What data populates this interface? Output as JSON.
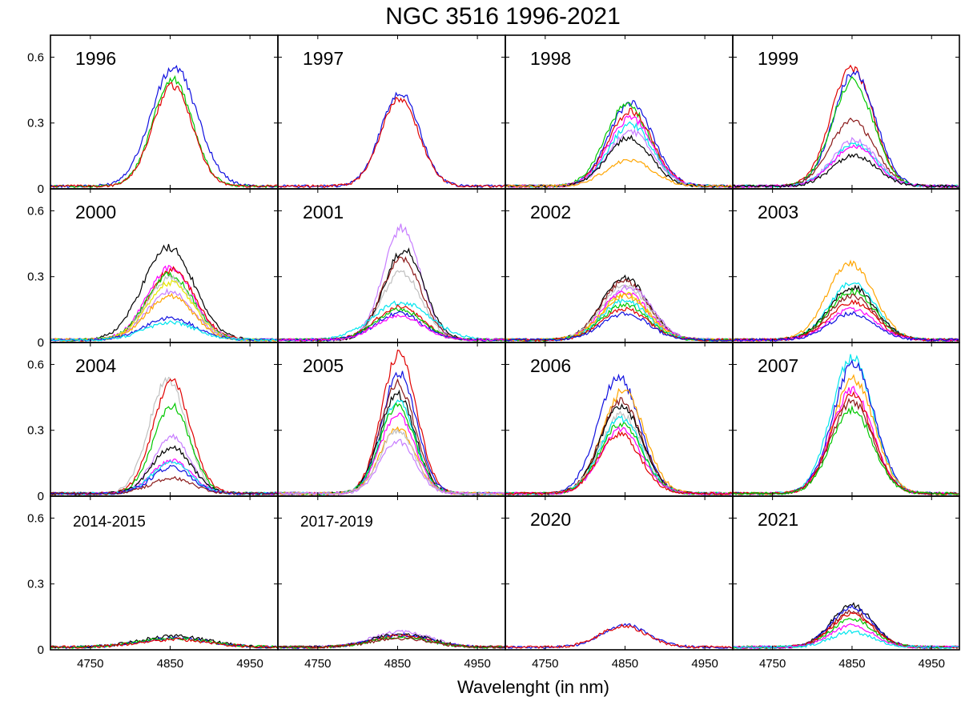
{
  "chart_data": {
    "type": "line",
    "title": "NGC 3516 1996-2021",
    "xlabel": "Wavelenght (in nm)",
    "ylabel": "",
    "xlim": [
      4700,
      4985
    ],
    "ylim": [
      0,
      0.7
    ],
    "xticks": [
      4750,
      4850,
      4950
    ],
    "yticks": [
      0,
      0.3,
      0.6
    ],
    "ytick_labels": [
      "0",
      "0.3",
      "0.6"
    ],
    "grid": false,
    "colors": {
      "blue": "#1010e0",
      "red": "#e00000",
      "green": "#00c800",
      "black": "#000000",
      "magenta": "#ff00ff",
      "cyan": "#00e5ee",
      "orange": "#ffa500",
      "violet": "#c77dff",
      "brown": "#8b1a1a",
      "gray": "#c0c0c0",
      "yellow": "#e6e600",
      "purple": "#9020d0"
    },
    "panels": [
      {
        "label": "1996",
        "series": [
          {
            "color": "blue",
            "peak": 0.54,
            "center": 4855,
            "width": 40
          },
          {
            "color": "green",
            "peak": 0.49,
            "center": 4853,
            "width": 34
          },
          {
            "color": "red",
            "peak": 0.46,
            "center": 4853,
            "width": 34
          }
        ]
      },
      {
        "label": "1997",
        "series": [
          {
            "color": "blue",
            "peak": 0.43,
            "center": 4853,
            "width": 33
          },
          {
            "color": "red",
            "peak": 0.4,
            "center": 4853,
            "width": 33
          }
        ]
      },
      {
        "label": "1998",
        "series": [
          {
            "color": "blue",
            "peak": 0.38,
            "center": 4857,
            "width": 38
          },
          {
            "color": "green",
            "peak": 0.37,
            "center": 4853,
            "width": 38
          },
          {
            "color": "red",
            "peak": 0.34,
            "center": 4857,
            "width": 38
          },
          {
            "color": "magenta",
            "peak": 0.31,
            "center": 4857,
            "width": 38
          },
          {
            "color": "cyan",
            "peak": 0.28,
            "center": 4857,
            "width": 38
          },
          {
            "color": "violet",
            "peak": 0.25,
            "center": 4857,
            "width": 38
          },
          {
            "color": "black",
            "peak": 0.22,
            "center": 4855,
            "width": 38
          },
          {
            "color": "orange",
            "peak": 0.12,
            "center": 4855,
            "width": 40
          }
        ]
      },
      {
        "label": "1999",
        "series": [
          {
            "color": "red",
            "peak": 0.54,
            "center": 4850,
            "width": 36
          },
          {
            "color": "blue",
            "peak": 0.52,
            "center": 4853,
            "width": 36
          },
          {
            "color": "green",
            "peak": 0.48,
            "center": 4851,
            "width": 36
          },
          {
            "color": "brown",
            "peak": 0.3,
            "center": 4850,
            "width": 38
          },
          {
            "color": "violet",
            "peak": 0.21,
            "center": 4853,
            "width": 38
          },
          {
            "color": "cyan",
            "peak": 0.19,
            "center": 4853,
            "width": 38
          },
          {
            "color": "magenta",
            "peak": 0.18,
            "center": 4853,
            "width": 38
          },
          {
            "color": "black",
            "peak": 0.14,
            "center": 4853,
            "width": 38
          }
        ]
      },
      {
        "label": "2000",
        "series": [
          {
            "color": "black",
            "peak": 0.42,
            "center": 4848,
            "width": 44
          },
          {
            "color": "magenta",
            "peak": 0.33,
            "center": 4850,
            "width": 40
          },
          {
            "color": "red",
            "peak": 0.32,
            "center": 4852,
            "width": 40
          },
          {
            "color": "green",
            "peak": 0.3,
            "center": 4850,
            "width": 40
          },
          {
            "color": "gray",
            "peak": 0.28,
            "center": 4850,
            "width": 40
          },
          {
            "color": "yellow",
            "peak": 0.26,
            "center": 4850,
            "width": 40
          },
          {
            "color": "violet",
            "peak": 0.22,
            "center": 4850,
            "width": 40
          },
          {
            "color": "orange",
            "peak": 0.2,
            "center": 4850,
            "width": 40
          },
          {
            "color": "blue",
            "peak": 0.1,
            "center": 4850,
            "width": 44
          },
          {
            "color": "cyan",
            "peak": 0.08,
            "center": 4850,
            "width": 44
          }
        ]
      },
      {
        "label": "2001",
        "series": [
          {
            "color": "violet",
            "peak": 0.51,
            "center": 4855,
            "width": 32
          },
          {
            "color": "black",
            "peak": 0.41,
            "center": 4858,
            "width": 34
          },
          {
            "color": "brown",
            "peak": 0.37,
            "center": 4855,
            "width": 34
          },
          {
            "color": "gray",
            "peak": 0.31,
            "center": 4855,
            "width": 34
          },
          {
            "color": "cyan",
            "peak": 0.17,
            "center": 4855,
            "width": 50
          },
          {
            "color": "red",
            "peak": 0.15,
            "center": 4852,
            "width": 40
          },
          {
            "color": "green",
            "peak": 0.14,
            "center": 4852,
            "width": 40
          },
          {
            "color": "blue",
            "peak": 0.12,
            "center": 4852,
            "width": 40
          },
          {
            "color": "magenta",
            "peak": 0.11,
            "center": 4852,
            "width": 40
          }
        ]
      },
      {
        "label": "2002",
        "series": [
          {
            "color": "black",
            "peak": 0.28,
            "center": 4850,
            "width": 40
          },
          {
            "color": "brown",
            "peak": 0.27,
            "center": 4850,
            "width": 40
          },
          {
            "color": "gray",
            "peak": 0.25,
            "center": 4850,
            "width": 40
          },
          {
            "color": "violet",
            "peak": 0.24,
            "center": 4855,
            "width": 40
          },
          {
            "color": "magenta",
            "peak": 0.22,
            "center": 4850,
            "width": 40
          },
          {
            "color": "yellow",
            "peak": 0.21,
            "center": 4850,
            "width": 40
          },
          {
            "color": "orange",
            "peak": 0.2,
            "center": 4850,
            "width": 40
          },
          {
            "color": "cyan",
            "peak": 0.18,
            "center": 4850,
            "width": 40
          },
          {
            "color": "green",
            "peak": 0.16,
            "center": 4850,
            "width": 40
          },
          {
            "color": "red",
            "peak": 0.14,
            "center": 4850,
            "width": 40
          },
          {
            "color": "blue",
            "peak": 0.12,
            "center": 4850,
            "width": 40
          }
        ]
      },
      {
        "label": "2003",
        "series": [
          {
            "color": "orange",
            "peak": 0.35,
            "center": 4848,
            "width": 40
          },
          {
            "color": "cyan",
            "peak": 0.26,
            "center": 4850,
            "width": 40
          },
          {
            "color": "black",
            "peak": 0.24,
            "center": 4850,
            "width": 40
          },
          {
            "color": "green",
            "peak": 0.22,
            "center": 4850,
            "width": 40
          },
          {
            "color": "brown",
            "peak": 0.2,
            "center": 4850,
            "width": 40
          },
          {
            "color": "red",
            "peak": 0.17,
            "center": 4850,
            "width": 40
          },
          {
            "color": "magenta",
            "peak": 0.14,
            "center": 4850,
            "width": 40
          },
          {
            "color": "blue",
            "peak": 0.12,
            "center": 4850,
            "width": 40
          }
        ]
      },
      {
        "label": "2004",
        "series": [
          {
            "color": "gray",
            "peak": 0.52,
            "center": 4847,
            "width": 32
          },
          {
            "color": "red",
            "peak": 0.51,
            "center": 4852,
            "width": 32
          },
          {
            "color": "green",
            "peak": 0.4,
            "center": 4852,
            "width": 32
          },
          {
            "color": "violet",
            "peak": 0.26,
            "center": 4852,
            "width": 32
          },
          {
            "color": "black",
            "peak": 0.21,
            "center": 4852,
            "width": 34
          },
          {
            "color": "magenta",
            "peak": 0.15,
            "center": 4852,
            "width": 34
          },
          {
            "color": "cyan",
            "peak": 0.14,
            "center": 4852,
            "width": 34
          },
          {
            "color": "blue",
            "peak": 0.12,
            "center": 4852,
            "width": 34
          },
          {
            "color": "brown",
            "peak": 0.07,
            "center": 4852,
            "width": 36
          }
        ]
      },
      {
        "label": "2005",
        "series": [
          {
            "color": "red",
            "peak": 0.64,
            "center": 4852,
            "width": 30
          },
          {
            "color": "blue",
            "peak": 0.55,
            "center": 4852,
            "width": 30
          },
          {
            "color": "brown",
            "peak": 0.5,
            "center": 4850,
            "width": 30
          },
          {
            "color": "black",
            "peak": 0.45,
            "center": 4850,
            "width": 30
          },
          {
            "color": "cyan",
            "peak": 0.42,
            "center": 4850,
            "width": 30
          },
          {
            "color": "green",
            "peak": 0.4,
            "center": 4850,
            "width": 30
          },
          {
            "color": "magenta",
            "peak": 0.36,
            "center": 4850,
            "width": 30
          },
          {
            "color": "orange",
            "peak": 0.3,
            "center": 4850,
            "width": 30
          },
          {
            "color": "gray",
            "peak": 0.29,
            "center": 4850,
            "width": 30
          },
          {
            "color": "violet",
            "peak": 0.24,
            "center": 4850,
            "width": 30
          }
        ]
      },
      {
        "label": "2006",
        "series": [
          {
            "color": "blue",
            "peak": 0.53,
            "center": 4842,
            "width": 36
          },
          {
            "color": "orange",
            "peak": 0.47,
            "center": 4848,
            "width": 36
          },
          {
            "color": "brown",
            "peak": 0.42,
            "center": 4845,
            "width": 36
          },
          {
            "color": "black",
            "peak": 0.4,
            "center": 4845,
            "width": 36
          },
          {
            "color": "gray",
            "peak": 0.36,
            "center": 4845,
            "width": 36
          },
          {
            "color": "cyan",
            "peak": 0.34,
            "center": 4845,
            "width": 36
          },
          {
            "color": "green",
            "peak": 0.32,
            "center": 4845,
            "width": 36
          },
          {
            "color": "magenta",
            "peak": 0.29,
            "center": 4845,
            "width": 36
          },
          {
            "color": "red",
            "peak": 0.27,
            "center": 4843,
            "width": 36
          }
        ]
      },
      {
        "label": "2007",
        "series": [
          {
            "color": "cyan",
            "peak": 0.62,
            "center": 4850,
            "width": 36
          },
          {
            "color": "blue",
            "peak": 0.59,
            "center": 4852,
            "width": 36
          },
          {
            "color": "orange",
            "peak": 0.52,
            "center": 4852,
            "width": 36
          },
          {
            "color": "magenta",
            "peak": 0.47,
            "center": 4850,
            "width": 36
          },
          {
            "color": "red",
            "peak": 0.45,
            "center": 4850,
            "width": 36
          },
          {
            "color": "brown",
            "peak": 0.42,
            "center": 4850,
            "width": 36
          },
          {
            "color": "green",
            "peak": 0.38,
            "center": 4850,
            "width": 36
          }
        ]
      },
      {
        "label": "2014-2015",
        "series": [
          {
            "color": "black",
            "peak": 0.05,
            "center": 4855,
            "width": 60
          },
          {
            "color": "blue",
            "peak": 0.04,
            "center": 4855,
            "width": 60
          },
          {
            "color": "green",
            "peak": 0.04,
            "center": 4855,
            "width": 60
          },
          {
            "color": "red",
            "peak": 0.035,
            "center": 4855,
            "width": 60
          }
        ]
      },
      {
        "label": "2017-2019",
        "series": [
          {
            "color": "violet",
            "peak": 0.07,
            "center": 4855,
            "width": 50
          },
          {
            "color": "black",
            "peak": 0.06,
            "center": 4855,
            "width": 50
          },
          {
            "color": "blue",
            "peak": 0.055,
            "center": 4855,
            "width": 50
          },
          {
            "color": "red",
            "peak": 0.05,
            "center": 4855,
            "width": 50
          },
          {
            "color": "green",
            "peak": 0.045,
            "center": 4855,
            "width": 50
          },
          {
            "color": "brown",
            "peak": 0.04,
            "center": 4855,
            "width": 50
          }
        ]
      },
      {
        "label": "2020",
        "series": [
          {
            "color": "blue",
            "peak": 0.1,
            "center": 4850,
            "width": 40
          },
          {
            "color": "red",
            "peak": 0.095,
            "center": 4848,
            "width": 40
          }
        ]
      },
      {
        "label": "2021",
        "series": [
          {
            "color": "black",
            "peak": 0.19,
            "center": 4850,
            "width": 36
          },
          {
            "color": "blue",
            "peak": 0.18,
            "center": 4850,
            "width": 36
          },
          {
            "color": "brown",
            "peak": 0.16,
            "center": 4850,
            "width": 36
          },
          {
            "color": "red",
            "peak": 0.15,
            "center": 4850,
            "width": 36
          },
          {
            "color": "green",
            "peak": 0.13,
            "center": 4850,
            "width": 36
          },
          {
            "color": "magenta",
            "peak": 0.1,
            "center": 4850,
            "width": 36
          },
          {
            "color": "cyan",
            "peak": 0.07,
            "center": 4850,
            "width": 36
          }
        ]
      }
    ]
  }
}
